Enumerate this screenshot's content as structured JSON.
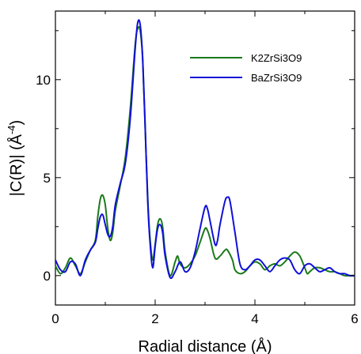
{
  "chart_data": {
    "type": "line",
    "xlabel": "Radial distance (Å)",
    "ylabel_main": "|C(R)| (Å",
    "ylabel_exp": "-4",
    "ylabel_close": ")",
    "xlim": [
      0,
      6
    ],
    "ylim": [
      -1.5,
      13.5
    ],
    "xticks": [
      0,
      2,
      4,
      6
    ],
    "yticks": [
      0,
      5,
      10
    ],
    "grid": false,
    "legend_position": "top-right",
    "series": [
      {
        "name": "K2ZrSi3O9",
        "color": "#1a7a1a",
        "points": [
          [
            0.0,
            0.5
          ],
          [
            0.1,
            0.1
          ],
          [
            0.2,
            0.4
          ],
          [
            0.3,
            0.9
          ],
          [
            0.4,
            0.5
          ],
          [
            0.5,
            0.1
          ],
          [
            0.6,
            0.7
          ],
          [
            0.7,
            1.3
          ],
          [
            0.8,
            1.8
          ],
          [
            0.85,
            3.0
          ],
          [
            0.9,
            3.9
          ],
          [
            0.95,
            4.1
          ],
          [
            1.0,
            3.6
          ],
          [
            1.05,
            2.4
          ],
          [
            1.1,
            1.8
          ],
          [
            1.15,
            2.2
          ],
          [
            1.2,
            3.3
          ],
          [
            1.3,
            4.6
          ],
          [
            1.4,
            6.0
          ],
          [
            1.5,
            8.5
          ],
          [
            1.6,
            11.8
          ],
          [
            1.65,
            12.6
          ],
          [
            1.7,
            12.5
          ],
          [
            1.75,
            11.0
          ],
          [
            1.8,
            7.5
          ],
          [
            1.85,
            4.0
          ],
          [
            1.9,
            1.8
          ],
          [
            1.95,
            0.8
          ],
          [
            2.0,
            1.6
          ],
          [
            2.05,
            2.6
          ],
          [
            2.1,
            2.9
          ],
          [
            2.15,
            2.5
          ],
          [
            2.2,
            1.2
          ],
          [
            2.3,
            0.0
          ],
          [
            2.4,
            0.7
          ],
          [
            2.45,
            1.0
          ],
          [
            2.5,
            0.6
          ],
          [
            2.6,
            0.4
          ],
          [
            2.7,
            0.6
          ],
          [
            2.8,
            1.0
          ],
          [
            2.9,
            1.7
          ],
          [
            3.0,
            2.4
          ],
          [
            3.05,
            2.3
          ],
          [
            3.1,
            1.9
          ],
          [
            3.2,
            0.9
          ],
          [
            3.3,
            1.0
          ],
          [
            3.4,
            1.3
          ],
          [
            3.45,
            1.3
          ],
          [
            3.55,
            0.8
          ],
          [
            3.6,
            0.3
          ],
          [
            3.7,
            0.1
          ],
          [
            3.8,
            0.2
          ],
          [
            3.9,
            0.5
          ],
          [
            4.0,
            0.7
          ],
          [
            4.1,
            0.6
          ],
          [
            4.2,
            0.3
          ],
          [
            4.3,
            0.5
          ],
          [
            4.4,
            0.6
          ],
          [
            4.5,
            0.5
          ],
          [
            4.6,
            0.7
          ],
          [
            4.7,
            1.0
          ],
          [
            4.8,
            1.2
          ],
          [
            4.9,
            1.0
          ],
          [
            5.0,
            0.4
          ],
          [
            5.05,
            0.1
          ],
          [
            5.1,
            0.2
          ],
          [
            5.2,
            0.4
          ],
          [
            5.3,
            0.4
          ],
          [
            5.4,
            0.3
          ],
          [
            5.5,
            0.2
          ],
          [
            5.6,
            0.2
          ],
          [
            5.7,
            0.1
          ],
          [
            5.8,
            0.0
          ],
          [
            5.9,
            0.0
          ],
          [
            6.0,
            0.0
          ]
        ]
      },
      {
        "name": "BaZrSi3O9",
        "color": "#1010d8",
        "points": [
          [
            0.0,
            0.8
          ],
          [
            0.1,
            0.3
          ],
          [
            0.2,
            0.2
          ],
          [
            0.3,
            0.7
          ],
          [
            0.4,
            0.6
          ],
          [
            0.5,
            0.0
          ],
          [
            0.6,
            0.8
          ],
          [
            0.7,
            1.3
          ],
          [
            0.8,
            1.7
          ],
          [
            0.85,
            2.4
          ],
          [
            0.9,
            3.0
          ],
          [
            0.95,
            3.1
          ],
          [
            1.0,
            2.6
          ],
          [
            1.05,
            2.1
          ],
          [
            1.1,
            2.0
          ],
          [
            1.15,
            2.5
          ],
          [
            1.2,
            3.6
          ],
          [
            1.3,
            4.7
          ],
          [
            1.4,
            5.7
          ],
          [
            1.5,
            8.0
          ],
          [
            1.6,
            11.6
          ],
          [
            1.65,
            12.9
          ],
          [
            1.7,
            12.8
          ],
          [
            1.75,
            11.0
          ],
          [
            1.8,
            7.6
          ],
          [
            1.85,
            3.8
          ],
          [
            1.9,
            1.6
          ],
          [
            1.95,
            0.4
          ],
          [
            2.0,
            1.5
          ],
          [
            2.05,
            2.4
          ],
          [
            2.1,
            2.6
          ],
          [
            2.15,
            2.2
          ],
          [
            2.2,
            1.0
          ],
          [
            2.3,
            -0.1
          ],
          [
            2.4,
            0.2
          ],
          [
            2.5,
            0.7
          ],
          [
            2.6,
            0.2
          ],
          [
            2.7,
            0.4
          ],
          [
            2.8,
            1.2
          ],
          [
            2.9,
            2.4
          ],
          [
            3.0,
            3.5
          ],
          [
            3.05,
            3.4
          ],
          [
            3.1,
            2.8
          ],
          [
            3.2,
            1.6
          ],
          [
            3.25,
            1.8
          ],
          [
            3.3,
            2.6
          ],
          [
            3.4,
            3.8
          ],
          [
            3.45,
            4.0
          ],
          [
            3.5,
            3.8
          ],
          [
            3.6,
            2.2
          ],
          [
            3.7,
            0.6
          ],
          [
            3.8,
            0.3
          ],
          [
            3.9,
            0.5
          ],
          [
            4.0,
            0.8
          ],
          [
            4.1,
            0.8
          ],
          [
            4.2,
            0.5
          ],
          [
            4.3,
            0.2
          ],
          [
            4.4,
            0.5
          ],
          [
            4.5,
            0.8
          ],
          [
            4.6,
            0.9
          ],
          [
            4.7,
            0.8
          ],
          [
            4.8,
            0.3
          ],
          [
            4.9,
            0.1
          ],
          [
            5.0,
            0.5
          ],
          [
            5.1,
            0.6
          ],
          [
            5.2,
            0.4
          ],
          [
            5.3,
            0.2
          ],
          [
            5.4,
            0.3
          ],
          [
            5.5,
            0.4
          ],
          [
            5.6,
            0.2
          ],
          [
            5.7,
            0.1
          ],
          [
            5.8,
            0.1
          ],
          [
            5.9,
            0.0
          ],
          [
            6.0,
            0.0
          ]
        ]
      }
    ]
  }
}
